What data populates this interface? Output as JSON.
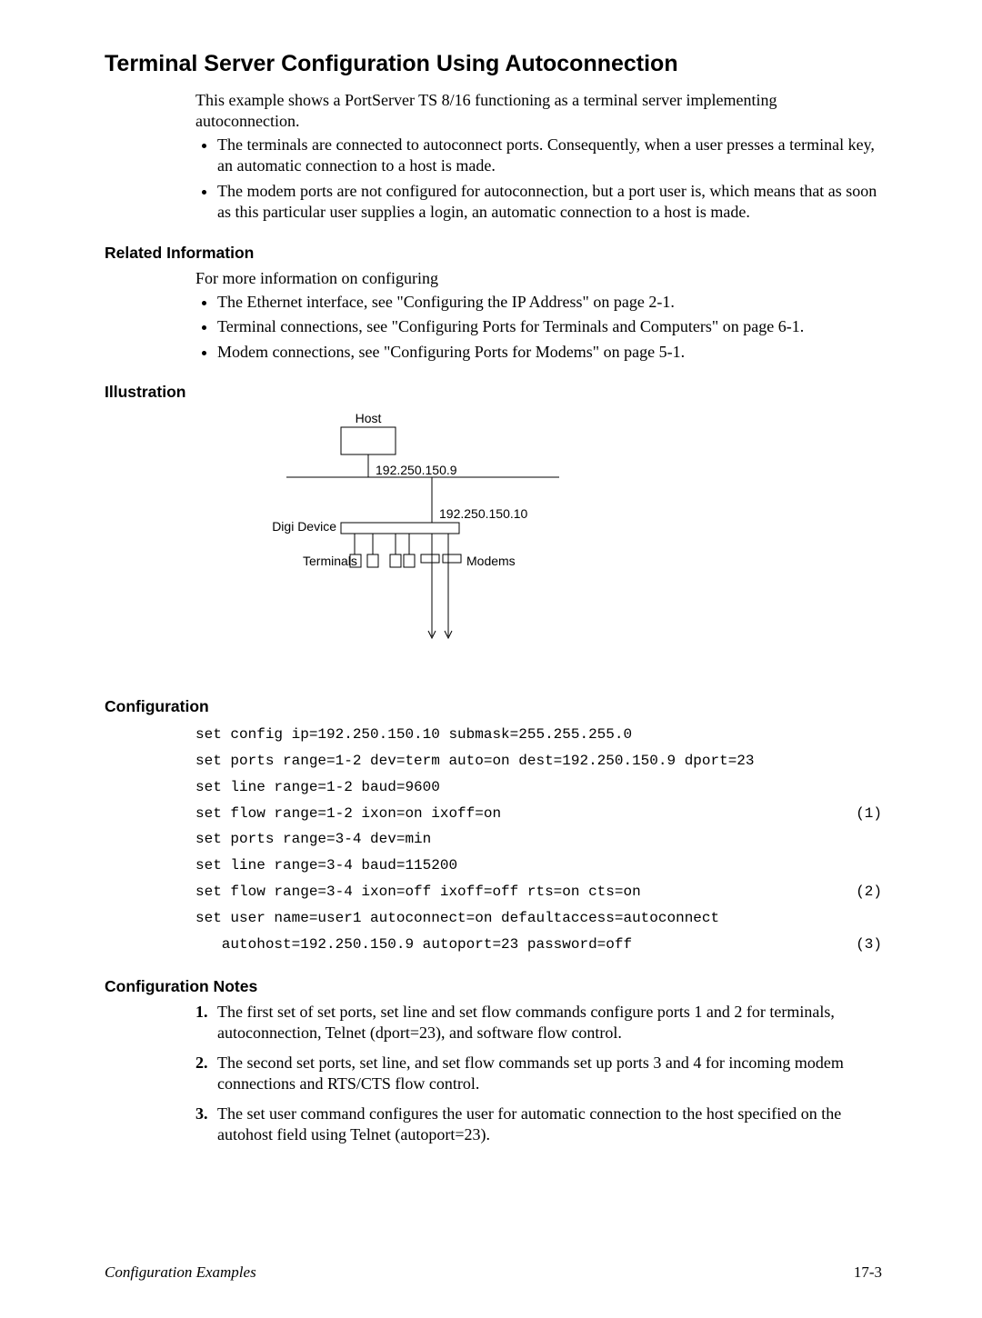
{
  "title": "Terminal Server Configuration Using Autoconnection",
  "intro": "This example shows a PortServer TS 8/16 functioning as a terminal server implementing autoconnection.",
  "intro_bullets": [
    "The terminals are connected to autoconnect ports. Consequently, when a user presses a terminal key, an automatic connection to a host is made.",
    "The modem ports are not configured for autoconnection, but a port user is, which means that as soon as this particular user supplies a login, an automatic connection to a host is made."
  ],
  "related": {
    "heading": "Related Information",
    "lead": "For more information on configuring",
    "items": [
      "The Ethernet interface, see \"Configuring the IP Address\" on page 2-1.",
      "Terminal connections, see \"Configuring Ports for Terminals and Computers\" on page 6-1.",
      "Modem connections, see \"Configuring Ports for Modems\" on page 5-1."
    ]
  },
  "illustration": {
    "heading": "Illustration",
    "host_label": "Host",
    "host_ip": "192.250.150.9",
    "device_label": "Digi Device",
    "device_ip": "192.250.150.10",
    "terminals_label": "Terminals",
    "modems_label": "Modems",
    "colors": {
      "stroke": "#000000",
      "fill": "#ffffff"
    }
  },
  "configuration": {
    "heading": "Configuration",
    "lines": [
      {
        "cmd": "set config ip=192.250.150.10 submask=255.255.255.0",
        "ann": ""
      },
      {
        "cmd": "set ports range=1-2 dev=term auto=on dest=192.250.150.9 dport=23",
        "ann": ""
      },
      {
        "cmd": "set line range=1-2 baud=9600",
        "ann": ""
      },
      {
        "cmd": "set flow range=1-2 ixon=on ixoff=on",
        "ann": "(1)"
      },
      {
        "cmd": "set ports range=3-4 dev=min",
        "ann": ""
      },
      {
        "cmd": "set line range=3-4 baud=115200",
        "ann": ""
      },
      {
        "cmd": "set flow range=3-4 ixon=off ixoff=off rts=on cts=on",
        "ann": "(2)"
      },
      {
        "cmd": "set user name=user1 autoconnect=on defaultaccess=autoconnect",
        "ann": ""
      },
      {
        "cmd": "   autohost=192.250.150.9 autoport=23 password=off",
        "ann": "(3)"
      }
    ]
  },
  "config_notes": {
    "heading": "Configuration Notes",
    "items": [
      "The first set of set ports, set line and set flow commands configure ports 1 and 2 for terminals, autoconnection, Telnet (dport=23), and software flow control.",
      "The second set ports, set line, and set flow commands set up ports 3 and 4 for incoming modem connections and RTS/CTS flow control.",
      "The set user command configures the user for automatic connection to the host specified on the autohost field using Telnet (autoport=23)."
    ]
  },
  "footer": {
    "left": "Configuration Examples",
    "right": "17-3"
  }
}
